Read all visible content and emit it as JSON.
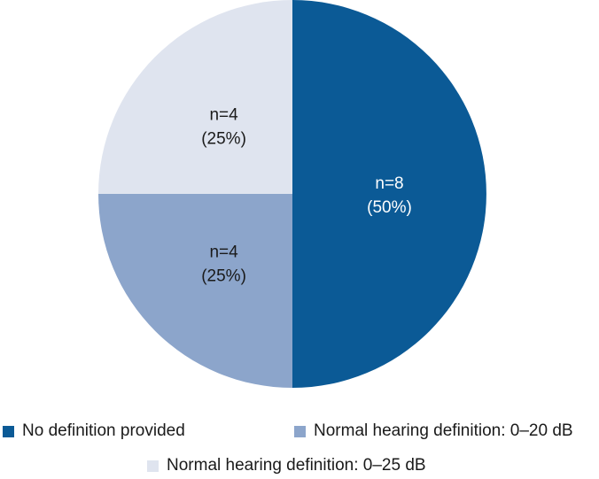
{
  "chart_data": {
    "type": "pie",
    "title": "",
    "start_angle_deg": 0,
    "direction": "clockwise",
    "slices": [
      {
        "name": "No definition provided",
        "count": 8,
        "percent": 50,
        "value_label": "n=8",
        "percent_label": "(50%)",
        "color": "#0b5a96"
      },
      {
        "name": "Normal hearing definition: 0–20 dB",
        "count": 4,
        "percent": 25,
        "value_label": "n=4",
        "percent_label": "(25%)",
        "color": "#8ca5cb"
      },
      {
        "name": "Normal hearing definition: 0–25 dB",
        "count": 4,
        "percent": 25,
        "value_label": "n=4",
        "percent_label": "(25%)",
        "color": "#dfe4ef"
      }
    ],
    "legend": {
      "position": "bottom",
      "entries": [
        "No definition provided",
        "Normal hearing definition: 0–20 dB",
        "Normal hearing definition: 0–25 dB"
      ]
    }
  }
}
